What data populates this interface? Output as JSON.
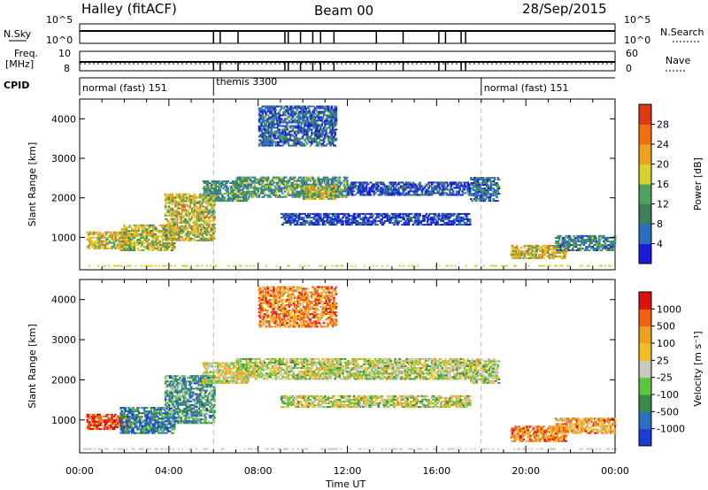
{
  "header": {
    "station": "Halley (fitACF)",
    "beam": "Beam 00",
    "date": "28/Sep/2015"
  },
  "param_panels": {
    "nsky_label": "N.Sky",
    "nsearch_label": "N.Search",
    "nsky_ticks": [
      "10^5",
      "10^0"
    ],
    "nsearch_ticks": [
      "10^5",
      "10^0"
    ],
    "freq_label_1": "Freq.",
    "freq_label_2": "[MHz]",
    "freq_ticks": [
      "10",
      "8"
    ],
    "nave_label": "Nave",
    "nave_ticks": [
      "60",
      "0"
    ],
    "cpid_label": "CPID",
    "cpid_segments": [
      {
        "label": "normal (fast) 151",
        "start_hour": 0,
        "end_hour": 6
      },
      {
        "label": "themis 3300",
        "start_hour": 6,
        "end_hour": 18
      },
      {
        "label": "normal (fast) 151",
        "start_hour": 18,
        "end_hour": 24
      }
    ],
    "gap_hours": [
      9.2,
      9.35,
      9.9,
      10.45,
      10.8,
      11.4,
      13.3,
      14.5,
      16.1,
      16.4,
      17.1,
      17.3,
      6.0,
      6.3,
      7.1
    ]
  },
  "chart_data": [
    {
      "type": "heatmap",
      "name": "power",
      "ylabel": "Slant Range [km]",
      "x_range_hours": [
        0,
        24
      ],
      "ylim_km": [
        180,
        4500
      ],
      "y_ticks": [
        1000,
        2000,
        3000,
        4000
      ],
      "colorbar": {
        "label": "Power [dB]",
        "range": [
          0,
          32
        ],
        "ticks": [
          "4",
          "8",
          "12",
          "16",
          "20",
          "24",
          "28"
        ],
        "colors": [
          "#1a1adc",
          "#2a6fbf",
          "#3d7f5a",
          "#4fa25a",
          "#d7d22a",
          "#f0a020",
          "#f07010",
          "#e03a10"
        ]
      },
      "regions": [
        {
          "t0": 0.3,
          "t1": 2.2,
          "r0": 700,
          "r1": 1150,
          "level": 0.6
        },
        {
          "t0": 1.8,
          "t1": 4.2,
          "r0": 650,
          "r1": 1300,
          "level": 0.55
        },
        {
          "t0": 3.8,
          "t1": 6.0,
          "r0": 900,
          "r1": 2100,
          "level": 0.55
        },
        {
          "t0": 5.5,
          "t1": 7.5,
          "r0": 1900,
          "r1": 2400,
          "level": 0.35
        },
        {
          "t0": 7.0,
          "t1": 12.0,
          "r0": 2000,
          "r1": 2500,
          "level": 0.35
        },
        {
          "t0": 10.0,
          "t1": 11.5,
          "r0": 1950,
          "r1": 2300,
          "level": 0.55
        },
        {
          "t0": 12.0,
          "t1": 17.5,
          "r0": 2050,
          "r1": 2400,
          "level": 0.15
        },
        {
          "t0": 9.0,
          "t1": 17.5,
          "r0": 1300,
          "r1": 1600,
          "level": 0.1
        },
        {
          "t0": 17.5,
          "t1": 18.8,
          "r0": 1900,
          "r1": 2500,
          "level": 0.25
        },
        {
          "t0": 19.3,
          "t1": 21.8,
          "r0": 450,
          "r1": 800,
          "level": 0.6
        },
        {
          "t0": 21.3,
          "t1": 24.0,
          "r0": 650,
          "r1": 1050,
          "level": 0.3
        },
        {
          "t0": 8.0,
          "t1": 11.5,
          "r0": 3300,
          "r1": 4300,
          "level": 0.2
        }
      ]
    },
    {
      "type": "heatmap",
      "name": "velocity",
      "ylabel": "Slant Range [km]",
      "xlabel": "Time UT",
      "x_range_hours": [
        0,
        24
      ],
      "x_ticks": [
        "00:00",
        "04:00",
        "08:00",
        "12:00",
        "16:00",
        "20:00",
        "00:00"
      ],
      "ylim_km": [
        180,
        4500
      ],
      "y_ticks": [
        1000,
        2000,
        3000,
        4000
      ],
      "colorbar": {
        "label": "Velocity [m s⁻¹]",
        "ticks": [
          "1000",
          "500",
          "100",
          "25",
          "-25",
          "-100",
          "-500",
          "-1000"
        ],
        "colors": [
          "#1a3cd0",
          "#2a70c0",
          "#3a8a4a",
          "#5ac83a",
          "#c8c8c0",
          "#f0c020",
          "#f0a020",
          "#f06010",
          "#e01010"
        ]
      },
      "regions": [
        {
          "t0": 0.3,
          "t1": 2.2,
          "r0": 750,
          "r1": 1150,
          "level": 0.9
        },
        {
          "t0": 1.8,
          "t1": 4.2,
          "r0": 650,
          "r1": 1300,
          "level": 0.2
        },
        {
          "t0": 3.8,
          "t1": 6.0,
          "r0": 900,
          "r1": 2100,
          "level": 0.3
        },
        {
          "t0": 5.5,
          "t1": 7.5,
          "r0": 1900,
          "r1": 2400,
          "level": 0.55
        },
        {
          "t0": 7.0,
          "t1": 17.5,
          "r0": 2000,
          "r1": 2500,
          "level": 0.5
        },
        {
          "t0": 9.0,
          "t1": 17.5,
          "r0": 1300,
          "r1": 1600,
          "level": 0.5
        },
        {
          "t0": 17.5,
          "t1": 18.8,
          "r0": 1900,
          "r1": 2500,
          "level": 0.5
        },
        {
          "t0": 19.3,
          "t1": 21.8,
          "r0": 450,
          "r1": 850,
          "level": 0.75
        },
        {
          "t0": 21.3,
          "t1": 24.0,
          "r0": 650,
          "r1": 1050,
          "level": 0.7
        },
        {
          "t0": 8.0,
          "t1": 11.5,
          "r0": 3300,
          "r1": 4300,
          "level": 0.75
        }
      ]
    }
  ]
}
